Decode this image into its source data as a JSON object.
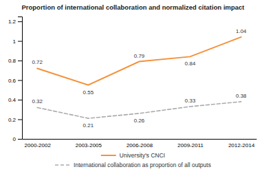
{
  "chart_data": {
    "type": "line",
    "title": "Proportion of international collaboration and normalized citation impact",
    "categories": [
      "2000-2002",
      "2003-2005",
      "2006-2008",
      "2009-2011",
      "2012-2014"
    ],
    "series": [
      {
        "name": "University's CNCI",
        "color": "#F4913A",
        "line_style": "solid",
        "values": [
          0.72,
          0.55,
          0.79,
          0.84,
          1.04
        ]
      },
      {
        "name": "International collaboration as proportion of all outputs",
        "color": "#AAAAAA",
        "line_style": "dashed",
        "values": [
          0.32,
          0.21,
          0.26,
          0.33,
          0.38
        ]
      }
    ],
    "ylim": [
      0,
      1.25
    ],
    "yticks": [
      0,
      0.2,
      0.4,
      0.6,
      0.8,
      1,
      1.2
    ],
    "grid": false,
    "legend": "bottom",
    "data_labels": true
  }
}
